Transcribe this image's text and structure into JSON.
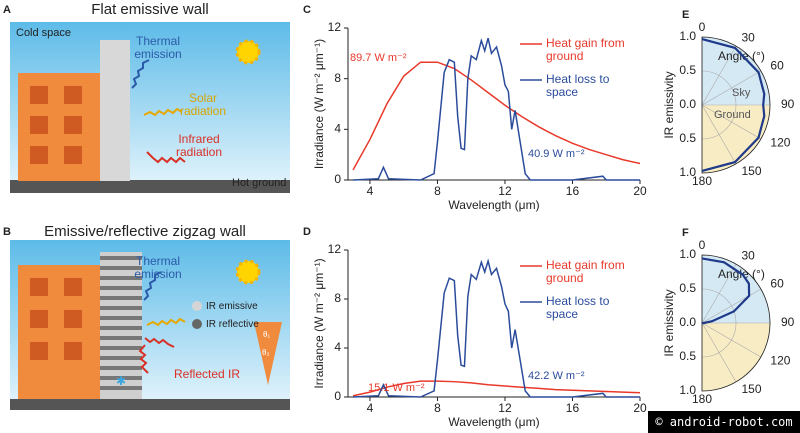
{
  "panels": {
    "A": {
      "label": "A",
      "title": "Flat emissive wall",
      "texts": [
        "Cold space",
        "Thermal emission",
        "Solar radiation",
        "Infrared radiation",
        "Hot ground"
      ]
    },
    "B": {
      "label": "B",
      "title": "Emissive/reflective zigzag wall",
      "texts": [
        "Thermal emission",
        "IR emissive",
        "IR reflective",
        "Reflected IR",
        "θ₁",
        "θ₂"
      ]
    }
  },
  "chart_data": [
    {
      "type": "line",
      "label": "C",
      "xlabel": "Wavelength (μm)",
      "ylabel": "Irradiance (W m⁻² μm⁻¹)",
      "xlim": [
        2.7,
        20
      ],
      "xticks": [
        4,
        8,
        12,
        16,
        20
      ],
      "ylim": [
        0,
        12
      ],
      "yticks": [
        0,
        4,
        8,
        12
      ],
      "series": [
        {
          "name": "Heat gain from ground",
          "color": "#e8392b",
          "annotation": "89.7 W m⁻²",
          "x": [
            3,
            4,
            5,
            6,
            7,
            8,
            9,
            10,
            11,
            12,
            13,
            14,
            15,
            16,
            17,
            18,
            19,
            20
          ],
          "values": [
            0.8,
            3.2,
            6.0,
            8.2,
            9.3,
            9.3,
            8.8,
            7.9,
            6.9,
            5.9,
            5.0,
            4.2,
            3.5,
            2.9,
            2.4,
            2.0,
            1.6,
            1.3
          ]
        },
        {
          "name": "Heat loss to space",
          "color": "#2b4c9b",
          "annotation": "40.9 W m⁻²",
          "x": [
            3,
            4.5,
            4.8,
            5.1,
            7,
            7.8,
            8,
            8.4,
            8.7,
            9.0,
            9.2,
            9.4,
            9.6,
            9.8,
            10.0,
            10.3,
            10.6,
            10.8,
            11.0,
            11.2,
            11.5,
            11.8,
            12.0,
            12.2,
            12.4,
            12.6,
            12.9,
            13.2,
            13.5,
            16,
            17.8,
            18,
            20
          ],
          "values": [
            0,
            0.1,
            1.0,
            0.1,
            0,
            0.5,
            3,
            8.5,
            9.5,
            9.3,
            5,
            2.5,
            2.4,
            8,
            9.8,
            9.5,
            11.0,
            10.2,
            11.2,
            10,
            10.5,
            9,
            7.5,
            7,
            4,
            5.5,
            3,
            0.5,
            0,
            0,
            0.3,
            0,
            0
          ]
        }
      ]
    },
    {
      "type": "line",
      "label": "D",
      "xlabel": "Wavelength (μm)",
      "ylabel": "Irradiance (W m⁻² μm⁻¹)",
      "xlim": [
        2.7,
        20
      ],
      "xticks": [
        4,
        8,
        12,
        16,
        20
      ],
      "ylim": [
        0,
        12
      ],
      "yticks": [
        0,
        4,
        8,
        12
      ],
      "series": [
        {
          "name": "Heat gain from ground",
          "color": "#e8392b",
          "annotation": "15.1 W m⁻²",
          "x": [
            3,
            4,
            5,
            6,
            7,
            8,
            9,
            10,
            11,
            12,
            13,
            14,
            15,
            16,
            17,
            18,
            19,
            20
          ],
          "values": [
            0.1,
            0.4,
            0.8,
            1.1,
            1.3,
            1.3,
            1.25,
            1.15,
            1.0,
            0.9,
            0.8,
            0.7,
            0.6,
            0.55,
            0.5,
            0.45,
            0.4,
            0.35
          ]
        },
        {
          "name": "Heat loss to space",
          "color": "#2b4c9b",
          "annotation": "42.2 W m⁻²",
          "x": [
            3,
            4.5,
            4.8,
            5.1,
            7,
            7.8,
            8,
            8.4,
            8.7,
            9.0,
            9.2,
            9.4,
            9.6,
            9.8,
            10.0,
            10.3,
            10.6,
            10.8,
            11.0,
            11.2,
            11.5,
            11.8,
            12.0,
            12.2,
            12.4,
            12.6,
            12.9,
            13.2,
            13.5,
            16,
            17.8,
            18,
            20
          ],
          "values": [
            0,
            0.1,
            1.0,
            0.1,
            0,
            0.5,
            3,
            8.5,
            9.7,
            9.5,
            5,
            2.6,
            2.5,
            8.2,
            10.0,
            9.6,
            11.0,
            10.2,
            11.1,
            10,
            10.5,
            9,
            7.6,
            7,
            4,
            5.5,
            3,
            0.5,
            0,
            0,
            0.3,
            0,
            0
          ]
        }
      ]
    },
    {
      "type": "polar",
      "label": "E",
      "ylabel": "IR emissivity",
      "theta_label": "Angle (°)",
      "rlim": [
        0,
        1
      ],
      "rticks": [
        {
          "value": 0,
          "label": "0.0"
        },
        {
          "value": 0.5,
          "label": "0.5"
        },
        {
          "value": 1,
          "label": "1.0"
        }
      ],
      "thetaticks": [
        0,
        30,
        60,
        90,
        120,
        150,
        180
      ],
      "regions": [
        "Sky",
        "Ground"
      ],
      "series": [
        {
          "color": "#1f3a8a",
          "theta": [
            0,
            30,
            60,
            80,
            90,
            100,
            120,
            150,
            180
          ],
          "values": [
            0.97,
            0.97,
            0.96,
            0.93,
            0.9,
            0.93,
            0.96,
            0.97,
            0.97
          ]
        }
      ]
    },
    {
      "type": "polar",
      "label": "F",
      "ylabel": "IR emissivity",
      "theta_label": "Angle (°)",
      "rlim": [
        0,
        1
      ],
      "rticks": [
        {
          "value": 0,
          "label": "0.0"
        },
        {
          "value": 0.5,
          "label": "0.5"
        },
        {
          "value": 1,
          "label": "1.0"
        }
      ],
      "thetaticks": [
        0,
        30,
        60,
        90,
        120,
        150,
        180
      ],
      "series": [
        {
          "color": "#1f3a8a",
          "theta": [
            0,
            20,
            40,
            50,
            60,
            70,
            80,
            90,
            120,
            180
          ],
          "values": [
            0.95,
            0.95,
            0.93,
            0.9,
            0.8,
            0.5,
            0.15,
            0.03,
            0,
            0
          ]
        }
      ]
    }
  ],
  "watermark": "© android-robot.com"
}
